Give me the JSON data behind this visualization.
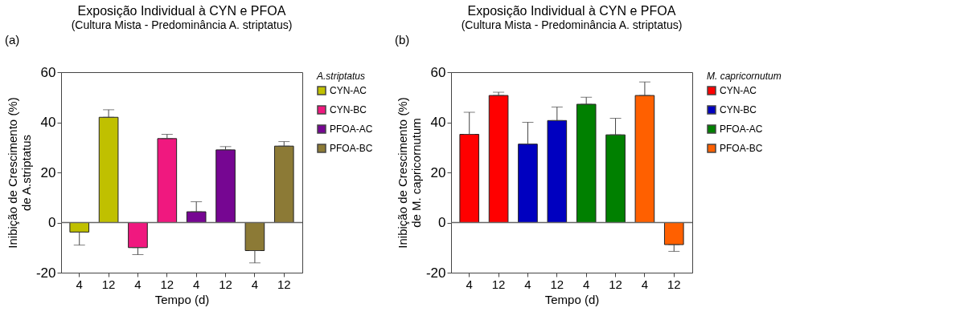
{
  "chart_data": [
    {
      "type": "bar",
      "title": "Exposição Individual à CYN e PFOA",
      "subtitle": "(Cultura Mista - Predominância A. striptatus)",
      "xlabel": "Tempo (d)",
      "ylabel": "Inibição de Crescimento (%)\nde A.striptatus",
      "legend_title": "A.striptatus",
      "annotations": [
        "(a)"
      ],
      "categories": [
        "4",
        "12",
        "4",
        "12",
        "4",
        "12",
        "4",
        "12"
      ],
      "series": [
        {
          "name": "CYN-AC",
          "color": "#c0c000",
          "values": [
            -3.8,
            42,
            null,
            null,
            null,
            null,
            null,
            null
          ],
          "errors": [
            [
              -9,
              -3.8
            ],
            [
              42,
              45
            ],
            null,
            null,
            null,
            null,
            null,
            null
          ]
        },
        {
          "name": "CYN-BC",
          "color": "#f0187f",
          "values": [
            null,
            null,
            -10,
            33.5,
            null,
            null,
            null,
            null
          ],
          "errors": [
            null,
            null,
            [
              -12.8,
              -10
            ],
            [
              33.5,
              35.2
            ],
            null,
            null,
            null,
            null
          ]
        },
        {
          "name": "PFOA-AC",
          "color": "#760692",
          "values": [
            null,
            null,
            null,
            null,
            4.3,
            29,
            null,
            null
          ],
          "errors": [
            null,
            null,
            null,
            null,
            [
              4.3,
              8.3
            ],
            [
              29,
              30.3
            ],
            null,
            null
          ]
        },
        {
          "name": "PFOA-BC",
          "color": "#8c7a36",
          "values": [
            null,
            null,
            null,
            null,
            null,
            null,
            -11.2,
            30.5
          ],
          "errors": [
            null,
            null,
            null,
            null,
            null,
            null,
            [
              -16.1,
              -11.2
            ],
            [
              30.5,
              32.3
            ]
          ]
        }
      ],
      "ylim": [
        -20,
        60
      ],
      "yticks": [
        -20,
        0,
        20,
        40,
        60
      ],
      "ref_lines": [
        {
          "axis": "y",
          "value": 0
        }
      ],
      "grid": false,
      "legend": "right"
    },
    {
      "type": "bar",
      "title": "Exposição Individual à CYN e PFOA",
      "subtitle": "(Cultura Mista - Predominância A. striptatus)",
      "xlabel": "Tempo (d)",
      "ylabel": "Inibição de Crescimento (%)\nde M. capricornutum",
      "legend_title": "M. capricornutum",
      "annotations": [
        "(b)"
      ],
      "categories": [
        "4",
        "12",
        "4",
        "12",
        "4",
        "12",
        "4",
        "12"
      ],
      "series": [
        {
          "name": "CYN-AC",
          "color": "#ff0000",
          "values": [
            35.2,
            50.7,
            null,
            null,
            null,
            null,
            null,
            null
          ],
          "errors": [
            [
              35.2,
              44
            ],
            [
              50.7,
              52
            ],
            null,
            null,
            null,
            null,
            null,
            null
          ]
        },
        {
          "name": "CYN-BC",
          "color": "#0000c0",
          "values": [
            null,
            null,
            31.3,
            40.7,
            null,
            null,
            null,
            null
          ],
          "errors": [
            null,
            null,
            [
              31.3,
              40
            ],
            [
              40.7,
              46.1
            ],
            null,
            null,
            null,
            null
          ]
        },
        {
          "name": "PFOA-AC",
          "color": "#008000",
          "values": [
            null,
            null,
            null,
            null,
            47.2,
            35,
            null,
            null
          ],
          "errors": [
            null,
            null,
            null,
            null,
            [
              47.2,
              50
            ],
            [
              35,
              41.6
            ],
            null,
            null
          ]
        },
        {
          "name": "PFOA-BC",
          "color": "#ff6000",
          "values": [
            null,
            null,
            null,
            null,
            null,
            null,
            50.7,
            -8.8
          ],
          "errors": [
            null,
            null,
            null,
            null,
            null,
            null,
            [
              50.7,
              56.1
            ],
            [
              -11.5,
              -8.8
            ]
          ]
        }
      ],
      "ylim": [
        -20,
        60
      ],
      "yticks": [
        -20,
        0,
        20,
        40,
        60
      ],
      "ref_lines": [
        {
          "axis": "y",
          "value": 0
        }
      ],
      "grid": false,
      "legend": "right"
    }
  ]
}
